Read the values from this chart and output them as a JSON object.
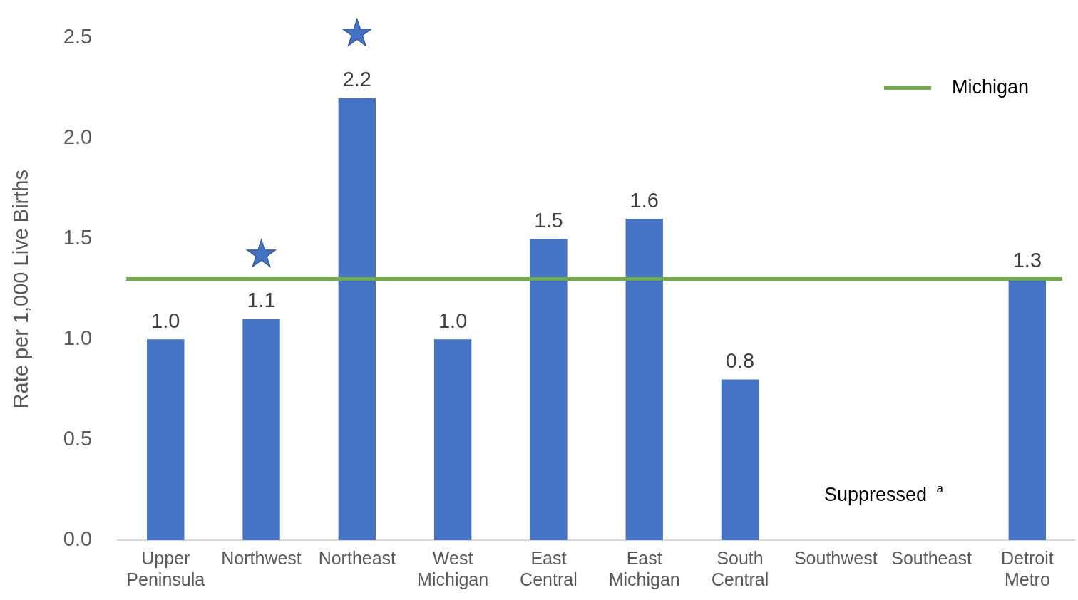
{
  "chart_data": {
    "type": "bar",
    "ylabel": "Rate per 1,000 Live Births",
    "categories": [
      "Upper Peninsula",
      "Northwest",
      "Northeast",
      "West Michigan",
      "East Central",
      "East Michigan",
      "South Central",
      "Southwest",
      "Southeast",
      "Detroit Metro"
    ],
    "values": [
      1.0,
      1.1,
      2.2,
      1.0,
      1.5,
      1.6,
      0.8,
      null,
      null,
      1.3
    ],
    "value_labels": [
      "1.0",
      "1.1",
      "2.2",
      "1.0",
      "1.5",
      "1.6",
      "0.8",
      null,
      null,
      "1.3"
    ],
    "color": "#4472c4",
    "ylim": [
      0,
      2.5
    ],
    "yticks": [
      {
        "value": 0,
        "label": "0.0"
      },
      {
        "value": 0.5,
        "label": "0.5"
      },
      {
        "value": 1,
        "label": "1.0"
      },
      {
        "value": 1.5,
        "label": "1.5"
      },
      {
        "value": 2,
        "label": "2.0"
      },
      {
        "value": 2.5,
        "label": "2.5"
      }
    ],
    "grid": false,
    "legend": "top right",
    "ref_lines": [
      {
        "axis": "y",
        "value": 1.3,
        "label": "Michigan",
        "color": "#70ad47"
      }
    ],
    "annotations": [
      {
        "text": "★",
        "x": "Northwest",
        "y": 1.1
      },
      {
        "text": "★",
        "x": "Northeast",
        "y": 2.2
      },
      "Suppressed $^{a}$"
    ]
  }
}
